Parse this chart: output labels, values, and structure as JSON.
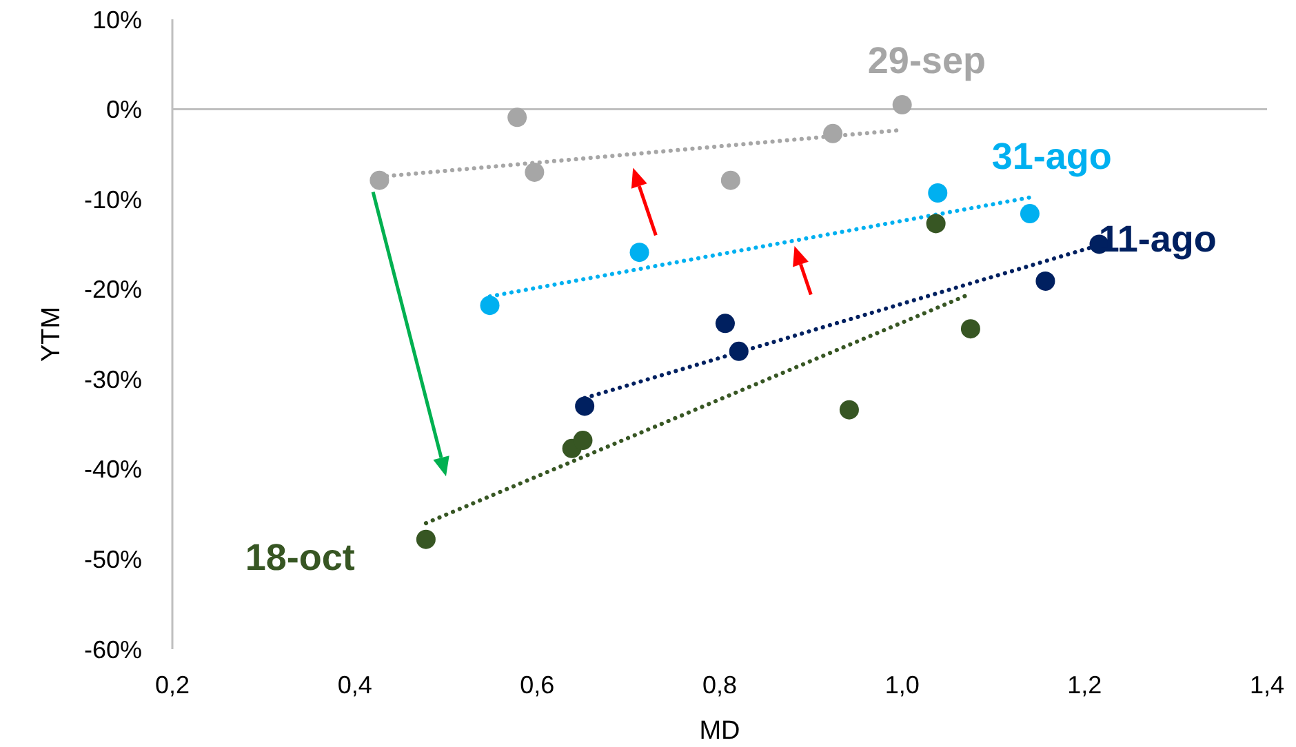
{
  "chart_data": {
    "type": "scatter",
    "xlabel": "MD",
    "ylabel": "YTM",
    "xlim": [
      0.2,
      1.4
    ],
    "ylim": [
      -60,
      10
    ],
    "xticks": [
      {
        "value": 0.2,
        "label": "0,2"
      },
      {
        "value": 0.4,
        "label": "0,4"
      },
      {
        "value": 0.6,
        "label": "0,6"
      },
      {
        "value": 0.8,
        "label": "0,8"
      },
      {
        "value": 1.0,
        "label": "1,0"
      },
      {
        "value": 1.2,
        "label": "1,2"
      },
      {
        "value": 1.4,
        "label": "1,4"
      }
    ],
    "yticks": [
      {
        "value": 10,
        "label": "10%"
      },
      {
        "value": 0,
        "label": "0%"
      },
      {
        "value": -10,
        "label": "-10%"
      },
      {
        "value": -20,
        "label": "-20%"
      },
      {
        "value": -30,
        "label": "-30%"
      },
      {
        "value": -40,
        "label": "-40%"
      },
      {
        "value": -50,
        "label": "-50%"
      },
      {
        "value": -60,
        "label": "-60%"
      }
    ],
    "grid": false,
    "marker": "circle",
    "ref_lines": [
      {
        "axis": "y",
        "value": 0,
        "color": "#bfbfbf"
      }
    ],
    "series": [
      {
        "name": "29-sep",
        "color": "#a6a6a6",
        "x": [
          0.427,
          0.578,
          0.597,
          0.812,
          0.924,
          1.0
        ],
        "values": [
          -7.9,
          -0.9,
          -7.0,
          -7.9,
          -2.7,
          0.5
        ]
      },
      {
        "name": "31-ago",
        "color": "#00b0f0",
        "x": [
          0.548,
          0.712,
          1.039,
          1.14
        ],
        "values": [
          -21.8,
          -15.9,
          -9.3,
          -11.6
        ]
      },
      {
        "name": "11-ago",
        "color": "#002060",
        "x": [
          0.652,
          0.806,
          0.821,
          1.157,
          1.216
        ],
        "values": [
          -33.0,
          -23.8,
          -26.9,
          -19.1,
          -15.0
        ]
      },
      {
        "name": "18-oct",
        "color": "#375623",
        "x": [
          0.478,
          0.638,
          0.65,
          0.942,
          1.075,
          1.037
        ],
        "values": [
          -47.8,
          -37.7,
          -36.8,
          -33.4,
          -24.4,
          -12.7
        ]
      },
      {
        "type": "line",
        "line_style": "dotted",
        "marker": "none",
        "color": "#a6a6a6",
        "x": [
          0.427,
          1.0
        ],
        "values": [
          -7.5,
          -2.3
        ]
      },
      {
        "type": "line",
        "line_style": "dotted",
        "marker": "none",
        "color": "#00b0f0",
        "x": [
          0.548,
          1.14
        ],
        "values": [
          -20.8,
          -9.8
        ]
      },
      {
        "type": "line",
        "line_style": "dotted",
        "marker": "none",
        "color": "#002060",
        "x": [
          0.652,
          1.216
        ],
        "values": [
          -32.1,
          -15.1
        ]
      },
      {
        "type": "line",
        "line_style": "dotted",
        "marker": "none",
        "color": "#375623",
        "x": [
          0.478,
          1.075
        ],
        "values": [
          -46.0,
          -20.5
        ]
      }
    ]
  }
}
